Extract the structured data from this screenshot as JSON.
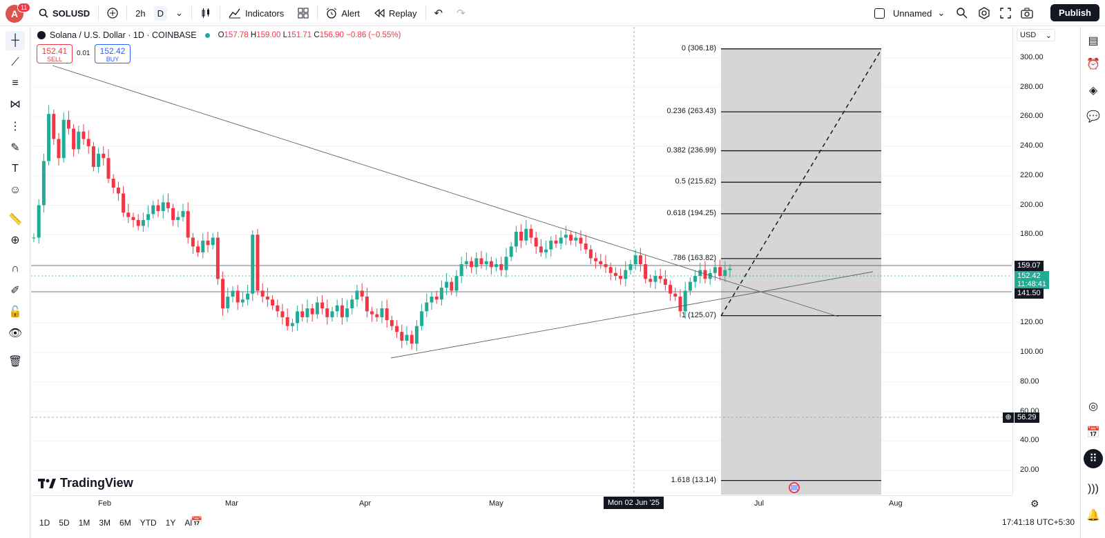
{
  "topbar": {
    "avatar_letter": "A",
    "notifications": "11",
    "symbol": "SOLUSD",
    "interval": "2h",
    "interval_active": "D",
    "indicators": "Indicators",
    "alert": "Alert",
    "replay": "Replay",
    "layout_name": "Unnamed",
    "publish": "Publish"
  },
  "legend": {
    "title": "Solana / U.S. Dollar · 1D · COINBASE",
    "o_label": "O",
    "o": "157.78",
    "h_label": "H",
    "h": "159.00",
    "l_label": "L",
    "l": "151.71",
    "c_label": "C",
    "c": "156.90",
    "change": "−0.86 (−0.55%)"
  },
  "trade": {
    "sell_price": "152.41",
    "sell_label": "SELL",
    "spread": "0.01",
    "buy_price": "152.42",
    "buy_label": "BUY"
  },
  "brand": "TradingView",
  "price_axis": {
    "currency": "USD",
    "ticks": [
      "300.00",
      "280.00",
      "260.00",
      "240.00",
      "220.00",
      "200.00",
      "180.00",
      "120.00",
      "100.00",
      "80.00",
      "60.00",
      "40.00",
      "20.00"
    ],
    "labels": {
      "level_159": "159.07",
      "current": "152.42",
      "countdown": "11:48:41",
      "level_141": "141.50",
      "crosshair": "56.29"
    }
  },
  "fib": {
    "levels": [
      {
        "label": "0 (306.18)",
        "price": 306.18
      },
      {
        "label": "0.236 (263.43)",
        "price": 263.43
      },
      {
        "label": "0.382 (236.99)",
        "price": 236.99
      },
      {
        "label": "0.5 (215.62)",
        "price": 215.62
      },
      {
        "label": "0.618 (194.25)",
        "price": 194.25
      },
      {
        "label": ".786 (163.82)",
        "price": 163.82
      },
      {
        "label": "1 (125.07)",
        "price": 125.07
      },
      {
        "label": "1.618 (13.14)",
        "price": 13.14
      }
    ]
  },
  "time_axis": {
    "ticks": [
      "Feb",
      "Mar",
      "Apr",
      "May",
      "Jul",
      "Aug"
    ],
    "crosshair": "Mon 02 Jun '25"
  },
  "ranges": [
    "1D",
    "5D",
    "1M",
    "3M",
    "6M",
    "YTD",
    "1Y",
    "All"
  ],
  "clock": "17:41:18 UTC+5:30",
  "colors": {
    "up": "#22ab94",
    "down": "#f23645",
    "fib_zone": "#d1d1d1"
  }
}
